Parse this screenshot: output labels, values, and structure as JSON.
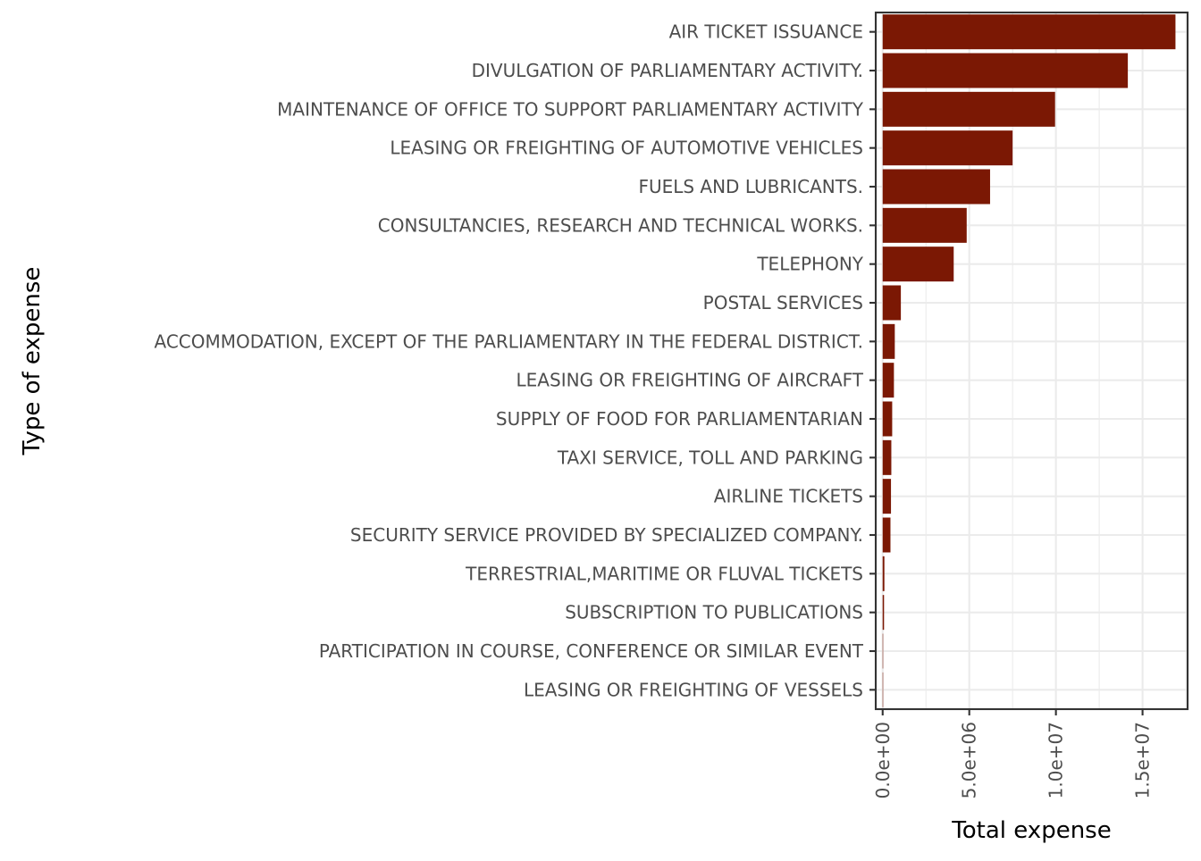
{
  "chart_data": {
    "type": "bar",
    "orientation": "horizontal",
    "xlabel": "Total expense",
    "ylabel": "Type of expense",
    "xlim": [
      -400000,
      17600000
    ],
    "x_ticks": [
      0,
      5000000,
      10000000,
      15000000
    ],
    "x_tick_labels": [
      "0.0e+00",
      "5.0e+06",
      "1.0e+07",
      "1.5e+07"
    ],
    "grid": true,
    "bar_color": "#7b1804",
    "categories": [
      "AIR TICKET ISSUANCE",
      "DIVULGATION OF PARLIAMENTARY ACTIVITY.",
      "MAINTENANCE OF OFFICE TO SUPPORT PARLIAMENTARY ACTIVITY",
      "LEASING OR FREIGHTING OF AUTOMOTIVE VEHICLES",
      "FUELS AND LUBRICANTS.",
      "CONSULTANCIES, RESEARCH AND TECHNICAL WORKS.",
      "TELEPHONY",
      "POSTAL SERVICES",
      "ACCOMMODATION, EXCEPT OF THE PARLIAMENTARY IN THE FEDERAL DISTRICT.",
      "LEASING OR FREIGHTING OF AIRCRAFT",
      "SUPPLY OF FOOD FOR PARLIAMENTARIAN",
      "TAXI SERVICE, TOLL AND PARKING",
      "AIRLINE TICKETS",
      "SECURITY SERVICE PROVIDED BY SPECIALIZED COMPANY.",
      "TERRESTRIAL,MARITIME OR FLUVAL TICKETS",
      "SUBSCRIPTION TO PUBLICATIONS",
      "PARTICIPATION IN COURSE, CONFERENCE OR SIMILAR EVENT",
      "LEASING OR FREIGHTING OF VESSELS"
    ],
    "values": [
      16900000,
      14150000,
      9950000,
      7500000,
      6200000,
      4850000,
      4100000,
      1050000,
      700000,
      650000,
      550000,
      500000,
      480000,
      450000,
      100000,
      80000,
      5000,
      2000
    ]
  }
}
